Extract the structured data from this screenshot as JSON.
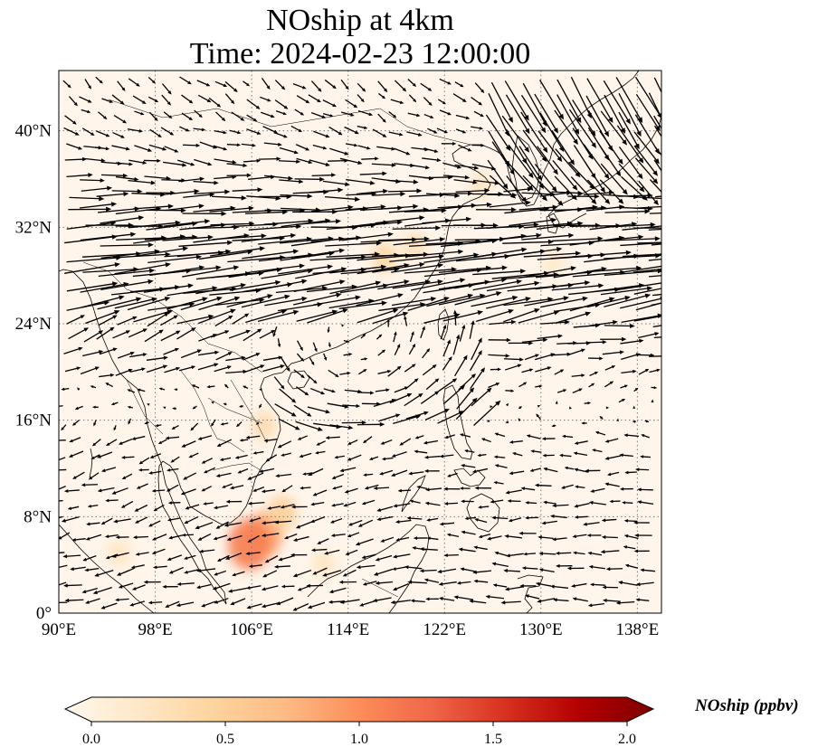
{
  "title": {
    "line1": "NOship at 4km",
    "line2": "Time: 2024-02-23 12:00:00"
  },
  "map": {
    "projection": "PlateCarree",
    "lon_range": [
      90,
      140
    ],
    "lat_range": [
      0,
      45
    ],
    "gridlines": "dotted",
    "x_ticks": [
      "90°E",
      "98°E",
      "106°E",
      "114°E",
      "122°E",
      "130°E",
      "138°E"
    ],
    "y_ticks": [
      "0°",
      "8°N",
      "16°N",
      "24°N",
      "32°N",
      "40°N"
    ],
    "features": [
      "coastlines",
      "country-borders",
      "wind-vectors",
      "NOship-concentration-field"
    ]
  },
  "colorbar": {
    "label": "NOship (ppbv)",
    "ticks": [
      "0.0",
      "0.5",
      "1.0",
      "1.5",
      "2.0"
    ],
    "range": [
      0,
      2.0
    ],
    "colormap": "OrRd",
    "extend": "both",
    "colors": [
      "#fff7ec",
      "#fee8c8",
      "#fdd49e",
      "#fdbb84",
      "#fc8d59",
      "#ef6548",
      "#d7301f",
      "#b30000",
      "#7f0000"
    ]
  },
  "field": {
    "hotspots": [
      {
        "lon": 107.0,
        "lat": 6.5,
        "value": 0.9
      },
      {
        "lon": 105.8,
        "lat": 5.7,
        "value": 1.1
      },
      {
        "lon": 108.5,
        "lat": 8.3,
        "value": 0.55
      },
      {
        "lon": 117.0,
        "lat": 29.5,
        "value": 0.45
      },
      {
        "lon": 119.5,
        "lat": 30.5,
        "value": 0.35
      },
      {
        "lon": 107.0,
        "lat": 15.5,
        "value": 0.4
      },
      {
        "lon": 125.0,
        "lat": 35.5,
        "value": 0.3
      },
      {
        "lon": 95.0,
        "lat": 5.0,
        "value": 0.3
      },
      {
        "lon": 112.0,
        "lat": 4.0,
        "value": 0.3
      },
      {
        "lon": 131.0,
        "lat": 29.0,
        "value": 0.25
      }
    ]
  }
}
